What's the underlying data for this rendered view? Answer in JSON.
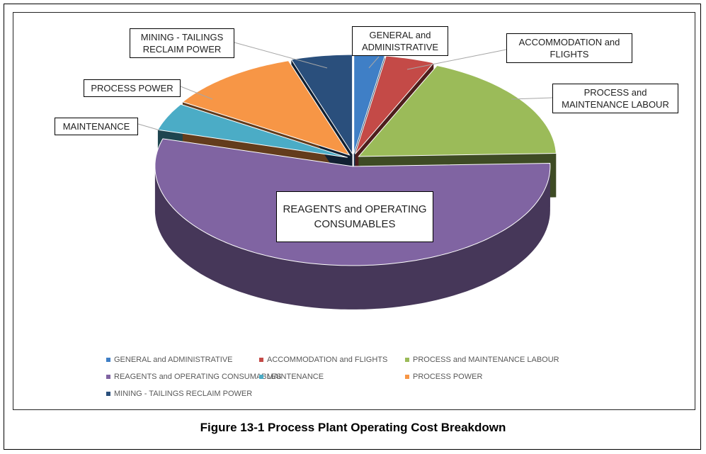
{
  "chart_data": {
    "type": "pie3d",
    "caption": "Figure 13-1 Process Plant Operating Cost Breakdown",
    "categories": [
      "GENERAL and ADMINISTRATIVE",
      "ACCOMMODATION and FLIGHTS",
      "PROCESS and MAINTENANCE LABOUR",
      "REAGENTS and OPERATING CONSUMABLES",
      "MAINTENANCE",
      "PROCESS POWER",
      "MINING - TAILINGS RECLAIM POWER"
    ],
    "values": [
      2.5,
      4,
      18,
      55,
      4.5,
      11,
      5
    ],
    "colors": [
      "#3f7fc6",
      "#c44a47",
      "#9bbb59",
      "#8064a2",
      "#4bacc6",
      "#f79646",
      "#2a4f7c"
    ],
    "legend": "bottom"
  }
}
